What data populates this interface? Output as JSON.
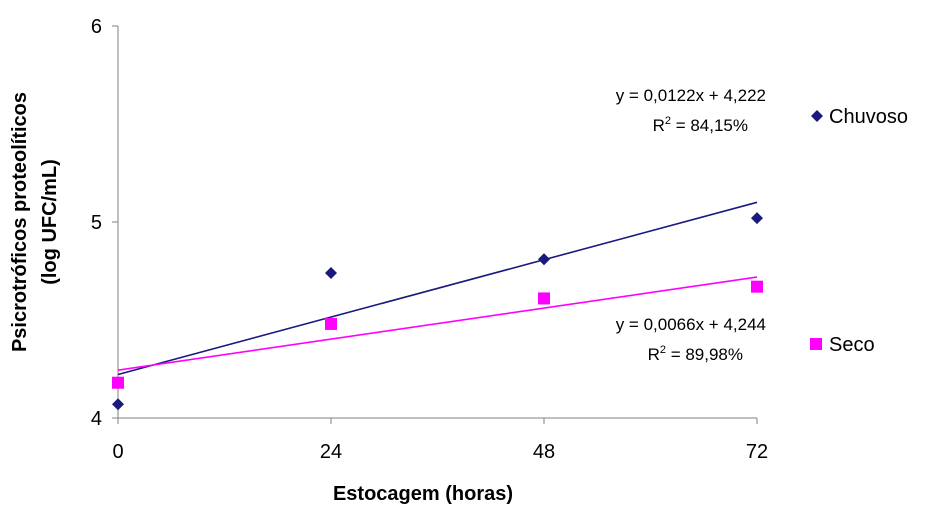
{
  "chart_data": {
    "type": "scatter",
    "xlabel": "Estocagem (horas)",
    "ylabel_line1": "Psicrotróficos proteolíticos",
    "ylabel_line2": "(log UFC/mL)",
    "xlim": [
      0,
      72
    ],
    "ylim": [
      4,
      6
    ],
    "xticks": [
      "0",
      "24",
      "48",
      "72"
    ],
    "xtick_values": [
      0,
      24,
      48,
      72
    ],
    "yticks": [
      "4",
      "5",
      "6"
    ],
    "ytick_values": [
      4,
      5,
      6
    ],
    "grid": false,
    "legend_position": "right",
    "series": [
      {
        "name": "Chuvoso",
        "color": "#1a1a7e",
        "marker": "diamond",
        "x": [
          0,
          24,
          48,
          72
        ],
        "y": [
          4.07,
          4.74,
          4.81,
          5.02
        ],
        "trend_slope": 0.0122,
        "trend_intercept": 4.222,
        "equation": "y = 0,0122x + 4,222",
        "r2_prefix": "R",
        "r2_value": " = 84,15%"
      },
      {
        "name": "Seco",
        "color": "#ff00ff",
        "marker": "square",
        "x": [
          0,
          24,
          48,
          72
        ],
        "y": [
          4.18,
          4.48,
          4.61,
          4.67
        ],
        "trend_slope": 0.0066,
        "trend_intercept": 4.244,
        "equation": "y = 0,0066x + 4,244",
        "r2_prefix": "R",
        "r2_value": " = 89,98%"
      }
    ]
  }
}
